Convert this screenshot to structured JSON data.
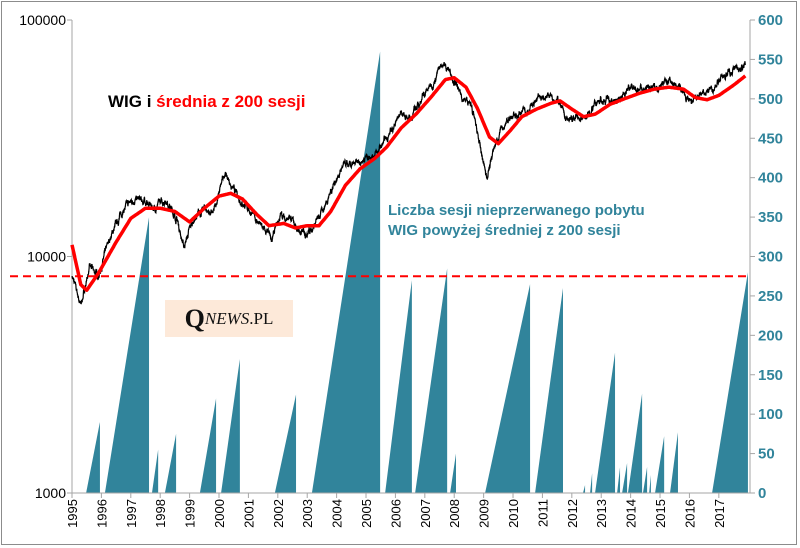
{
  "chart_data": {
    "type": "line",
    "title_parts": [
      "WIG i ",
      "średnia z 200 sesji"
    ],
    "annotation_lines": [
      "Liczba sesji nieprzerwanego pobytu",
      "WIG powyżej średniej z 200 sesji"
    ],
    "logo": {
      "q": "Q",
      "news": "NEWS",
      "pl": ".PL"
    },
    "x_ticks": [
      "1995",
      "1996",
      "1997",
      "1998",
      "1999",
      "2000",
      "2001",
      "2002",
      "2003",
      "2004",
      "2005",
      "2006",
      "2007",
      "2008",
      "2009",
      "2010",
      "2011",
      "2012",
      "2013",
      "2014",
      "2015",
      "2016",
      "2017"
    ],
    "xlim": [
      1995,
      2018.06
    ],
    "left_axis": {
      "scale": "log",
      "ylim": [
        1000,
        100000
      ],
      "ticks": [
        "1000",
        "10000",
        "100000"
      ]
    },
    "right_axis": {
      "ylim": [
        0,
        600
      ],
      "ticks": [
        "0",
        "50",
        "100",
        "150",
        "200",
        "250",
        "300",
        "350",
        "400",
        "450",
        "500",
        "550",
        "600"
      ]
    },
    "reference_line": {
      "axis": "right",
      "value": 275,
      "color": "#ff0000",
      "style": "dashed"
    },
    "colors": {
      "wig": "#000000",
      "ma": "#ff0000",
      "sessions": "#31849b",
      "right_axis_text": "#31849b"
    },
    "series": [
      {
        "name": "WIG",
        "axis": "left",
        "points": [
          [
            1995.0,
            8300
          ],
          [
            1995.3,
            6200
          ],
          [
            1995.6,
            9000
          ],
          [
            1995.9,
            8300
          ],
          [
            1996.3,
            12000
          ],
          [
            1996.7,
            15500
          ],
          [
            1997.1,
            17500
          ],
          [
            1997.5,
            17000
          ],
          [
            1997.8,
            16000
          ],
          [
            1998.2,
            17500
          ],
          [
            1998.6,
            14000
          ],
          [
            1998.8,
            11000
          ],
          [
            1999.1,
            14000
          ],
          [
            1999.5,
            16000
          ],
          [
            1999.8,
            15000
          ],
          [
            2000.2,
            22700
          ],
          [
            2000.5,
            19000
          ],
          [
            2000.8,
            17000
          ],
          [
            2001.0,
            16000
          ],
          [
            2001.5,
            13000
          ],
          [
            2001.8,
            11800
          ],
          [
            2002.1,
            15000
          ],
          [
            2002.5,
            14000
          ],
          [
            2002.8,
            12500
          ],
          [
            2003.1,
            13000
          ],
          [
            2003.4,
            14500
          ],
          [
            2003.8,
            19000
          ],
          [
            2004.2,
            24000
          ],
          [
            2004.6,
            24000
          ],
          [
            2005.0,
            26500
          ],
          [
            2005.4,
            27500
          ],
          [
            2005.8,
            33000
          ],
          [
            2006.2,
            41000
          ],
          [
            2006.5,
            38000
          ],
          [
            2006.9,
            47000
          ],
          [
            2007.3,
            55000
          ],
          [
            2007.6,
            66000
          ],
          [
            2007.9,
            60000
          ],
          [
            2008.2,
            48000
          ],
          [
            2008.6,
            43000
          ],
          [
            2008.9,
            28000
          ],
          [
            2009.1,
            21600
          ],
          [
            2009.4,
            30000
          ],
          [
            2009.8,
            38000
          ],
          [
            2010.2,
            40000
          ],
          [
            2010.6,
            43000
          ],
          [
            2011.0,
            47000
          ],
          [
            2011.3,
            49000
          ],
          [
            2011.6,
            45000
          ],
          [
            2011.8,
            37000
          ],
          [
            2012.0,
            38000
          ],
          [
            2012.5,
            39000
          ],
          [
            2012.9,
            45000
          ],
          [
            2013.2,
            46000
          ],
          [
            2013.5,
            45000
          ],
          [
            2013.9,
            51000
          ],
          [
            2014.3,
            52000
          ],
          [
            2014.7,
            51000
          ],
          [
            2015.0,
            53000
          ],
          [
            2015.3,
            56000
          ],
          [
            2015.7,
            51000
          ],
          [
            2016.0,
            44000
          ],
          [
            2016.4,
            48000
          ],
          [
            2016.8,
            51000
          ],
          [
            2017.1,
            58000
          ],
          [
            2017.5,
            62000
          ],
          [
            2017.9,
            64000
          ]
        ]
      },
      {
        "name": "średnia z 200 sesji",
        "axis": "left",
        "points": [
          [
            1995.0,
            11200
          ],
          [
            1995.3,
            7600
          ],
          [
            1995.5,
            7200
          ],
          [
            1995.9,
            8500
          ],
          [
            1996.5,
            11500
          ],
          [
            1997.0,
            14500
          ],
          [
            1997.5,
            16000
          ],
          [
            1998.0,
            16000
          ],
          [
            1998.5,
            15500
          ],
          [
            1999.0,
            14000
          ],
          [
            1999.5,
            16000
          ],
          [
            2000.0,
            18000
          ],
          [
            2000.4,
            18500
          ],
          [
            2000.8,
            17500
          ],
          [
            2001.3,
            15000
          ],
          [
            2001.7,
            13500
          ],
          [
            2002.2,
            13800
          ],
          [
            2002.6,
            13200
          ],
          [
            2003.0,
            13500
          ],
          [
            2003.4,
            13500
          ],
          [
            2003.8,
            15500
          ],
          [
            2004.3,
            20000
          ],
          [
            2004.8,
            23500
          ],
          [
            2005.3,
            26000
          ],
          [
            2005.7,
            29000
          ],
          [
            2006.2,
            35000
          ],
          [
            2006.7,
            40000
          ],
          [
            2007.2,
            47000
          ],
          [
            2007.7,
            56000
          ],
          [
            2008.0,
            57000
          ],
          [
            2008.4,
            52000
          ],
          [
            2008.8,
            42000
          ],
          [
            2009.2,
            32000
          ],
          [
            2009.5,
            30000
          ],
          [
            2009.9,
            34000
          ],
          [
            2010.3,
            39000
          ],
          [
            2010.8,
            42000
          ],
          [
            2011.3,
            44500
          ],
          [
            2011.6,
            45500
          ],
          [
            2012.0,
            42000
          ],
          [
            2012.4,
            39000
          ],
          [
            2012.8,
            40000
          ],
          [
            2013.3,
            44000
          ],
          [
            2013.8,
            46500
          ],
          [
            2014.3,
            49000
          ],
          [
            2014.8,
            51000
          ],
          [
            2015.3,
            52000
          ],
          [
            2015.8,
            51000
          ],
          [
            2016.2,
            47000
          ],
          [
            2016.6,
            46000
          ],
          [
            2017.0,
            48000
          ],
          [
            2017.5,
            53000
          ],
          [
            2017.9,
            58000
          ]
        ]
      },
      {
        "name": "Liczba sesji nieprzerwanego pobytu WIG powyżej średniej z 200 sesji",
        "axis": "right",
        "type": "area",
        "runs": [
          [
            1995.48,
            1995.95,
            90
          ],
          [
            1996.12,
            1997.62,
            350
          ],
          [
            1997.72,
            1997.93,
            55
          ],
          [
            1998.16,
            1998.54,
            75
          ],
          [
            1999.35,
            1999.9,
            120
          ],
          [
            2000.07,
            2000.71,
            170
          ],
          [
            2001.9,
            2002.62,
            125
          ],
          [
            2003.16,
            2005.48,
            560
          ],
          [
            2005.65,
            2006.56,
            270
          ],
          [
            2006.67,
            2007.76,
            285
          ],
          [
            2007.86,
            2008.06,
            50
          ],
          [
            2009.05,
            2010.58,
            265
          ],
          [
            2010.75,
            2011.7,
            260
          ],
          [
            2012.38,
            2012.45,
            10
          ],
          [
            2012.62,
            2012.69,
            25
          ],
          [
            2012.79,
            2013.47,
            178
          ],
          [
            2013.54,
            2013.64,
            33
          ],
          [
            2013.71,
            2013.88,
            38
          ],
          [
            2013.91,
            2014.39,
            126
          ],
          [
            2014.42,
            2014.56,
            33
          ],
          [
            2014.63,
            2014.69,
            23
          ],
          [
            2014.83,
            2015.14,
            72
          ],
          [
            2015.34,
            2015.61,
            77
          ],
          [
            2016.77,
            2017.99,
            280
          ]
        ]
      }
    ]
  }
}
